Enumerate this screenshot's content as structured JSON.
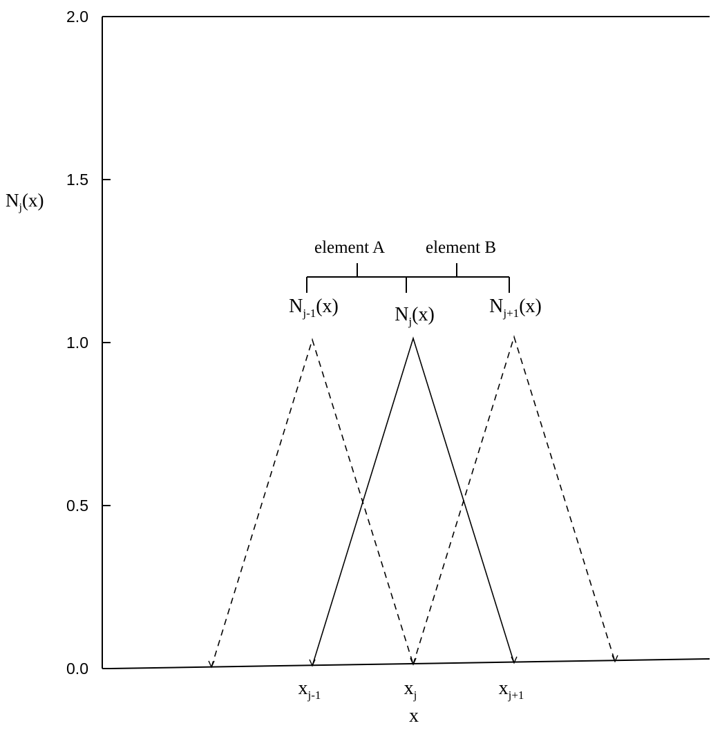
{
  "chart_data": {
    "type": "line",
    "ylabel": {
      "main": "N",
      "sub": "j",
      "tail": "(x)"
    },
    "xlabel": "x",
    "ylim": [
      0,
      2.0
    ],
    "yticks": [
      "0.0",
      "0.5",
      "1.0",
      "1.5",
      "2.0"
    ],
    "xticks": [
      {
        "main": "x",
        "sub": "j-1",
        "value": -1
      },
      {
        "main": "x",
        "sub": "j",
        "value": 0
      },
      {
        "main": "x",
        "sub": "j+1",
        "value": 1
      }
    ],
    "series": [
      {
        "x": [
          -2,
          -1,
          0
        ],
        "y": [
          0,
          1,
          0
        ],
        "dashed": true
      },
      {
        "x": [
          -1,
          0,
          1
        ],
        "y": [
          0,
          1,
          0
        ],
        "dashed": false
      },
      {
        "x": [
          0,
          1,
          2
        ],
        "y": [
          0,
          1,
          0
        ],
        "dashed": true
      }
    ],
    "curve_labels": [
      {
        "main": "N",
        "sub": "j-1",
        "tail": "(x)",
        "x": -1
      },
      {
        "main": "N",
        "sub": "j",
        "tail": "(x)",
        "x": 0
      },
      {
        "main": "N",
        "sub": "j+1",
        "tail": "(x)",
        "x": 1
      }
    ],
    "annotations": {
      "element_a": "element A",
      "element_b": "element B"
    },
    "grid": false,
    "frame": "left, top and bottom axis lines"
  }
}
